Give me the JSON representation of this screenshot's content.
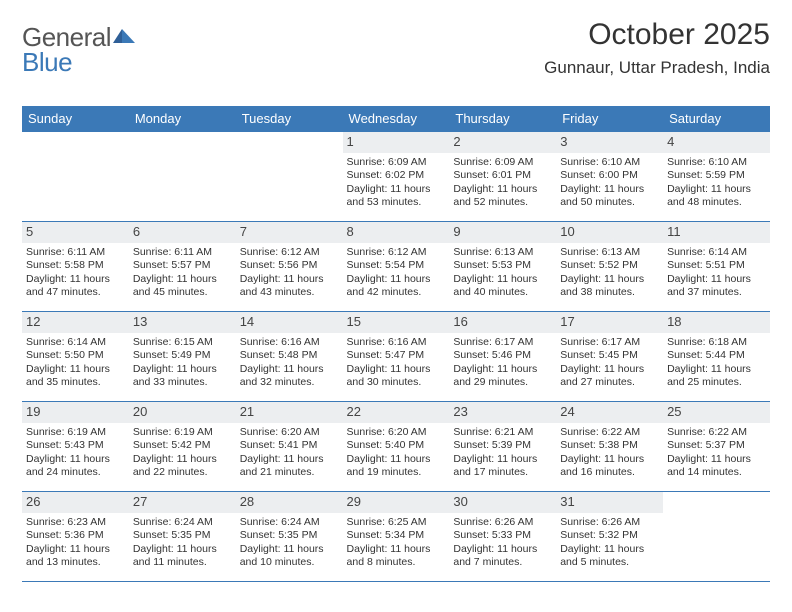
{
  "logo": {
    "general": "General",
    "blue": "Blue"
  },
  "title": {
    "month_year": "October 2025",
    "location": "Gunnaur, Uttar Pradesh, India"
  },
  "colors": {
    "header_bg": "#3b79b7",
    "header_text": "#ffffff",
    "daynum_bg": "#eceef0",
    "border": "#3b79b7",
    "body_text": "#333333",
    "logo_blue": "#3b79b7"
  },
  "weekdays": [
    "Sunday",
    "Monday",
    "Tuesday",
    "Wednesday",
    "Thursday",
    "Friday",
    "Saturday"
  ],
  "weeks": [
    [
      {
        "n": "",
        "sunrise": "",
        "sunset": "",
        "daylight": ""
      },
      {
        "n": "",
        "sunrise": "",
        "sunset": "",
        "daylight": ""
      },
      {
        "n": "",
        "sunrise": "",
        "sunset": "",
        "daylight": ""
      },
      {
        "n": "1",
        "sunrise": "Sunrise: 6:09 AM",
        "sunset": "Sunset: 6:02 PM",
        "daylight": "Daylight: 11 hours and 53 minutes."
      },
      {
        "n": "2",
        "sunrise": "Sunrise: 6:09 AM",
        "sunset": "Sunset: 6:01 PM",
        "daylight": "Daylight: 11 hours and 52 minutes."
      },
      {
        "n": "3",
        "sunrise": "Sunrise: 6:10 AM",
        "sunset": "Sunset: 6:00 PM",
        "daylight": "Daylight: 11 hours and 50 minutes."
      },
      {
        "n": "4",
        "sunrise": "Sunrise: 6:10 AM",
        "sunset": "Sunset: 5:59 PM",
        "daylight": "Daylight: 11 hours and 48 minutes."
      }
    ],
    [
      {
        "n": "5",
        "sunrise": "Sunrise: 6:11 AM",
        "sunset": "Sunset: 5:58 PM",
        "daylight": "Daylight: 11 hours and 47 minutes."
      },
      {
        "n": "6",
        "sunrise": "Sunrise: 6:11 AM",
        "sunset": "Sunset: 5:57 PM",
        "daylight": "Daylight: 11 hours and 45 minutes."
      },
      {
        "n": "7",
        "sunrise": "Sunrise: 6:12 AM",
        "sunset": "Sunset: 5:56 PM",
        "daylight": "Daylight: 11 hours and 43 minutes."
      },
      {
        "n": "8",
        "sunrise": "Sunrise: 6:12 AM",
        "sunset": "Sunset: 5:54 PM",
        "daylight": "Daylight: 11 hours and 42 minutes."
      },
      {
        "n": "9",
        "sunrise": "Sunrise: 6:13 AM",
        "sunset": "Sunset: 5:53 PM",
        "daylight": "Daylight: 11 hours and 40 minutes."
      },
      {
        "n": "10",
        "sunrise": "Sunrise: 6:13 AM",
        "sunset": "Sunset: 5:52 PM",
        "daylight": "Daylight: 11 hours and 38 minutes."
      },
      {
        "n": "11",
        "sunrise": "Sunrise: 6:14 AM",
        "sunset": "Sunset: 5:51 PM",
        "daylight": "Daylight: 11 hours and 37 minutes."
      }
    ],
    [
      {
        "n": "12",
        "sunrise": "Sunrise: 6:14 AM",
        "sunset": "Sunset: 5:50 PM",
        "daylight": "Daylight: 11 hours and 35 minutes."
      },
      {
        "n": "13",
        "sunrise": "Sunrise: 6:15 AM",
        "sunset": "Sunset: 5:49 PM",
        "daylight": "Daylight: 11 hours and 33 minutes."
      },
      {
        "n": "14",
        "sunrise": "Sunrise: 6:16 AM",
        "sunset": "Sunset: 5:48 PM",
        "daylight": "Daylight: 11 hours and 32 minutes."
      },
      {
        "n": "15",
        "sunrise": "Sunrise: 6:16 AM",
        "sunset": "Sunset: 5:47 PM",
        "daylight": "Daylight: 11 hours and 30 minutes."
      },
      {
        "n": "16",
        "sunrise": "Sunrise: 6:17 AM",
        "sunset": "Sunset: 5:46 PM",
        "daylight": "Daylight: 11 hours and 29 minutes."
      },
      {
        "n": "17",
        "sunrise": "Sunrise: 6:17 AM",
        "sunset": "Sunset: 5:45 PM",
        "daylight": "Daylight: 11 hours and 27 minutes."
      },
      {
        "n": "18",
        "sunrise": "Sunrise: 6:18 AM",
        "sunset": "Sunset: 5:44 PM",
        "daylight": "Daylight: 11 hours and 25 minutes."
      }
    ],
    [
      {
        "n": "19",
        "sunrise": "Sunrise: 6:19 AM",
        "sunset": "Sunset: 5:43 PM",
        "daylight": "Daylight: 11 hours and 24 minutes."
      },
      {
        "n": "20",
        "sunrise": "Sunrise: 6:19 AM",
        "sunset": "Sunset: 5:42 PM",
        "daylight": "Daylight: 11 hours and 22 minutes."
      },
      {
        "n": "21",
        "sunrise": "Sunrise: 6:20 AM",
        "sunset": "Sunset: 5:41 PM",
        "daylight": "Daylight: 11 hours and 21 minutes."
      },
      {
        "n": "22",
        "sunrise": "Sunrise: 6:20 AM",
        "sunset": "Sunset: 5:40 PM",
        "daylight": "Daylight: 11 hours and 19 minutes."
      },
      {
        "n": "23",
        "sunrise": "Sunrise: 6:21 AM",
        "sunset": "Sunset: 5:39 PM",
        "daylight": "Daylight: 11 hours and 17 minutes."
      },
      {
        "n": "24",
        "sunrise": "Sunrise: 6:22 AM",
        "sunset": "Sunset: 5:38 PM",
        "daylight": "Daylight: 11 hours and 16 minutes."
      },
      {
        "n": "25",
        "sunrise": "Sunrise: 6:22 AM",
        "sunset": "Sunset: 5:37 PM",
        "daylight": "Daylight: 11 hours and 14 minutes."
      }
    ],
    [
      {
        "n": "26",
        "sunrise": "Sunrise: 6:23 AM",
        "sunset": "Sunset: 5:36 PM",
        "daylight": "Daylight: 11 hours and 13 minutes."
      },
      {
        "n": "27",
        "sunrise": "Sunrise: 6:24 AM",
        "sunset": "Sunset: 5:35 PM",
        "daylight": "Daylight: 11 hours and 11 minutes."
      },
      {
        "n": "28",
        "sunrise": "Sunrise: 6:24 AM",
        "sunset": "Sunset: 5:35 PM",
        "daylight": "Daylight: 11 hours and 10 minutes."
      },
      {
        "n": "29",
        "sunrise": "Sunrise: 6:25 AM",
        "sunset": "Sunset: 5:34 PM",
        "daylight": "Daylight: 11 hours and 8 minutes."
      },
      {
        "n": "30",
        "sunrise": "Sunrise: 6:26 AM",
        "sunset": "Sunset: 5:33 PM",
        "daylight": "Daylight: 11 hours and 7 minutes."
      },
      {
        "n": "31",
        "sunrise": "Sunrise: 6:26 AM",
        "sunset": "Sunset: 5:32 PM",
        "daylight": "Daylight: 11 hours and 5 minutes."
      },
      {
        "n": "",
        "sunrise": "",
        "sunset": "",
        "daylight": ""
      }
    ]
  ]
}
